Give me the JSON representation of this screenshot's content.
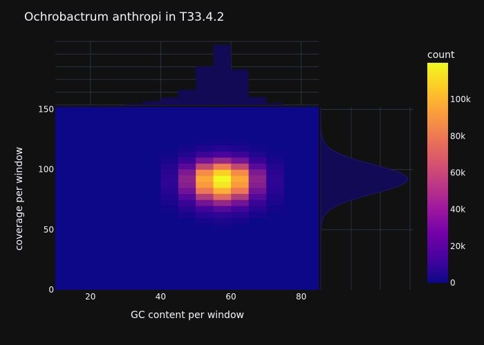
{
  "chart_data": {
    "type": "heatmap",
    "title": "Ochrobactrum anthropi in T33.4.2",
    "xlabel": "GC content per window",
    "ylabel": "coverage per window",
    "xlim": [
      10,
      85
    ],
    "ylim": [
      0,
      152
    ],
    "xticks": [
      20,
      40,
      60,
      80
    ],
    "yticks": [
      0,
      50,
      100,
      150
    ],
    "x_tick_labels": [
      "20",
      "40",
      "60",
      "80"
    ],
    "y_tick_labels": [
      "0",
      "50",
      "100",
      "150"
    ],
    "grid": true,
    "colorbar": {
      "title": "count",
      "min": 0,
      "max": 120000,
      "ticks": [
        0,
        20000,
        40000,
        60000,
        80000,
        100000
      ],
      "tick_labels": [
        "0",
        "20k",
        "40k",
        "60k",
        "80k",
        "100k"
      ],
      "colorscale": [
        "#0d0887",
        "#46039f",
        "#7201a8",
        "#9c179e",
        "#bd3786",
        "#d8576b",
        "#ed7953",
        "#fb9f3a",
        "#fdca26",
        "#f0f921"
      ]
    },
    "heatmap": {
      "x_bin_centers": [
        12.5,
        17.5,
        22.5,
        27.5,
        32.5,
        37.5,
        42.5,
        47.5,
        52.5,
        57.5,
        62.5,
        67.5,
        72.5,
        77.5,
        82.5
      ],
      "y_bin_start": 0,
      "y_bin_size": 5,
      "gc_peak": 57.5,
      "coverage_peak": 92,
      "peak_count": 120000
    },
    "x_marginal_histogram": {
      "bin_starts": [
        30,
        35,
        40,
        45,
        50,
        55,
        60,
        65,
        70
      ],
      "bin_size": 5,
      "relative_heights": [
        0.02,
        0.06,
        0.12,
        0.25,
        0.64,
        1.0,
        0.59,
        0.13,
        0.03
      ]
    },
    "y_marginal_density": {
      "peak_coverage": 92,
      "spread": 12
    },
    "colors": {
      "background": "#111111",
      "grid": "#283442",
      "marginal_fill": "#120a55",
      "heatmap_base": "#0d0887"
    }
  }
}
